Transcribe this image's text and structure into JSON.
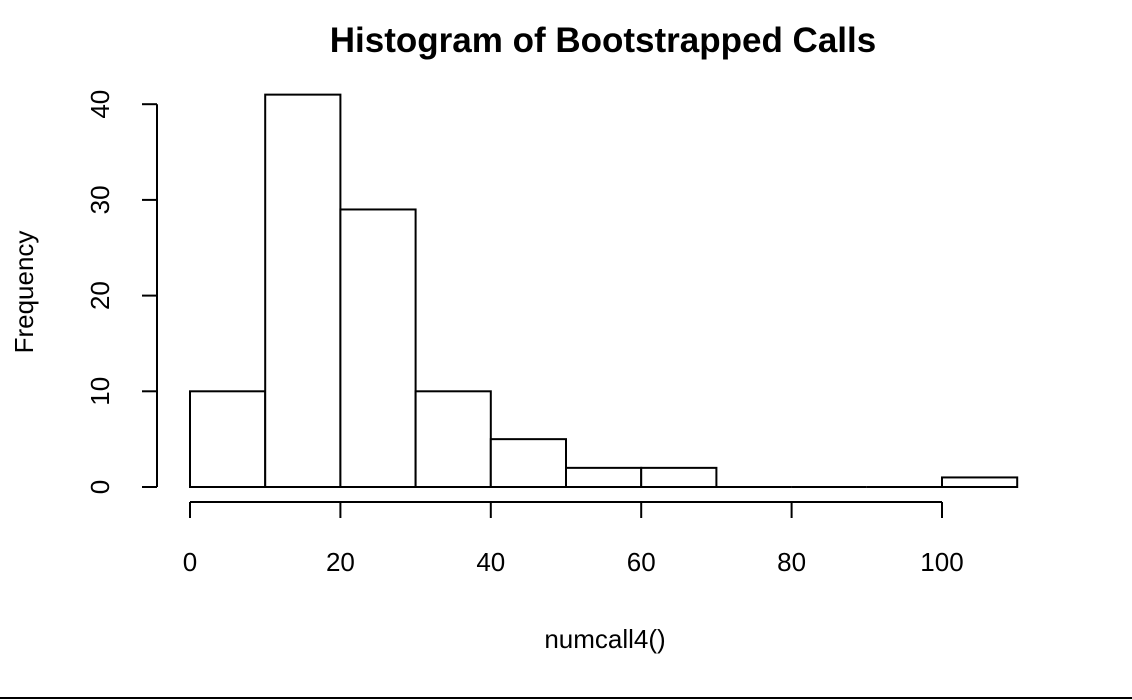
{
  "chart_data": {
    "type": "bar",
    "title": "Histogram of Bootstrapped Calls",
    "xlabel": "numcall4()",
    "ylabel": "Frequency",
    "bins": [
      {
        "from": 0,
        "to": 10,
        "count": 10
      },
      {
        "from": 10,
        "to": 20,
        "count": 41
      },
      {
        "from": 20,
        "to": 30,
        "count": 29
      },
      {
        "from": 30,
        "to": 40,
        "count": 10
      },
      {
        "from": 40,
        "to": 50,
        "count": 5
      },
      {
        "from": 50,
        "to": 60,
        "count": 2
      },
      {
        "from": 60,
        "to": 70,
        "count": 2
      },
      {
        "from": 70,
        "to": 80,
        "count": 0
      },
      {
        "from": 80,
        "to": 90,
        "count": 0
      },
      {
        "from": 90,
        "to": 100,
        "count": 0
      },
      {
        "from": 100,
        "to": 110,
        "count": 1
      }
    ],
    "xlim": [
      0,
      110
    ],
    "ylim": [
      0,
      41
    ],
    "x_ticks": [
      0,
      20,
      40,
      60,
      80,
      100
    ],
    "y_ticks": [
      0,
      10,
      20,
      30,
      40
    ],
    "grid": false,
    "legend": "none"
  }
}
